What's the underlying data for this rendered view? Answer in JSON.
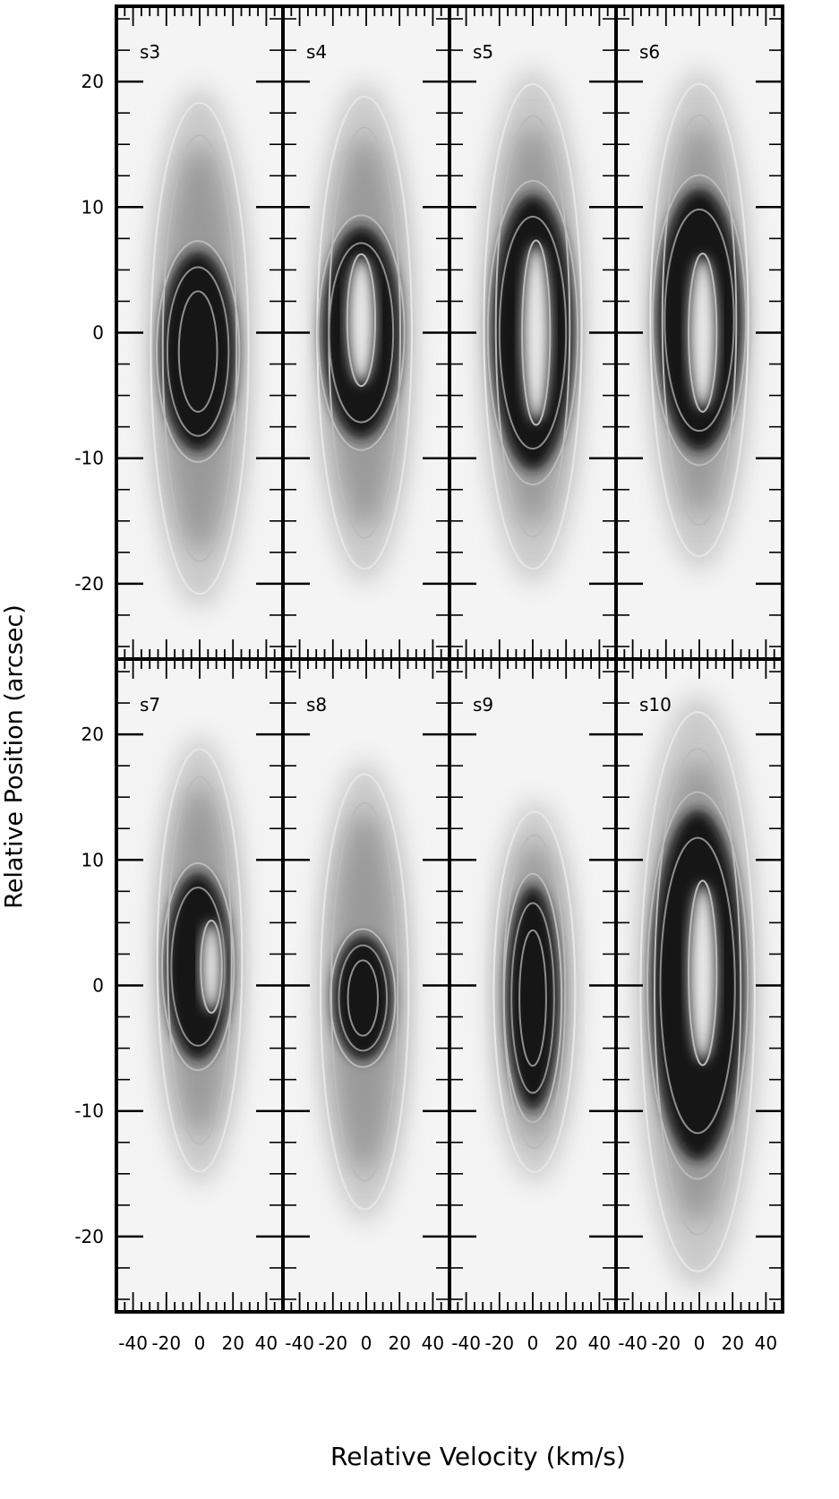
{
  "chart_data": {
    "type": "heatmap",
    "description_kind": "position-velocity diagrams (greyscale with contours)",
    "xlabel": "Relative Velocity (km/s)",
    "ylabel": "Relative Position (arcsec)",
    "xlim": [
      -50,
      50
    ],
    "ylim": [
      -26,
      26
    ],
    "x_ticks": [
      -40,
      -20,
      0,
      20,
      40
    ],
    "x_tick_labels": [
      "-40",
      "-20",
      "0",
      "20",
      "40"
    ],
    "y_ticks": [
      -20,
      -10,
      0,
      10,
      20
    ],
    "y_tick_labels": [
      "-20",
      "-10",
      "0",
      "10",
      "20"
    ],
    "layout": "2 rows x 4 columns",
    "colormap": "greyscale (white = low, black = high)",
    "contour_color": "#bbbbbb",
    "panels": [
      {
        "name": "s3",
        "emission_extent_y": [
          -21,
          18.5
        ],
        "emission_extent_x": [
          -30,
          30
        ],
        "dark_core": {
          "cx": -1,
          "cy": -1.5,
          "rx": 23,
          "ry": 8
        },
        "bright_hole": null
      },
      {
        "name": "s4",
        "emission_extent_y": [
          -19,
          19
        ],
        "emission_extent_x": [
          -30,
          28
        ],
        "dark_core": {
          "cx": -3,
          "cy": 0,
          "rx": 24,
          "ry": 8.5
        },
        "bright_hole": {
          "cx": -3,
          "cy": 1,
          "rx": 8,
          "ry": 5
        }
      },
      {
        "name": "s5",
        "emission_extent_y": [
          -19,
          20
        ],
        "emission_extent_x": [
          -30,
          30
        ],
        "dark_core": {
          "cx": 0,
          "cy": 0,
          "rx": 25,
          "ry": 11
        },
        "bright_hole": {
          "cx": 2,
          "cy": 0,
          "rx": 8,
          "ry": 7
        }
      },
      {
        "name": "s6",
        "emission_extent_y": [
          -18,
          20
        ],
        "emission_extent_x": [
          -30,
          30
        ],
        "dark_core": {
          "cx": 0,
          "cy": 1,
          "rx": 26,
          "ry": 10.5
        },
        "bright_hole": {
          "cx": 2,
          "cy": 0,
          "rx": 8,
          "ry": 6
        }
      },
      {
        "name": "s7",
        "emission_extent_y": [
          -15,
          19
        ],
        "emission_extent_x": [
          -26,
          26
        ],
        "dark_core": {
          "cx": -1,
          "cy": 1.5,
          "rx": 20,
          "ry": 7.5
        },
        "bright_hole": {
          "cx": 7,
          "cy": 1.5,
          "rx": 6,
          "ry": 3.5
        }
      },
      {
        "name": "s8",
        "emission_extent_y": [
          -18,
          17
        ],
        "emission_extent_x": [
          -28,
          26
        ],
        "dark_core": {
          "cx": -2,
          "cy": -1,
          "rx": 18,
          "ry": 5
        },
        "bright_hole": null
      },
      {
        "name": "s9",
        "emission_extent_y": [
          -15,
          14
        ],
        "emission_extent_x": [
          -24,
          26
        ],
        "dark_core": {
          "cx": 0,
          "cy": -1,
          "rx": 16,
          "ry": 9
        },
        "bright_hole": null
      },
      {
        "name": "s10",
        "emission_extent_y": [
          -23,
          22
        ],
        "emission_extent_x": [
          -36,
          34
        ],
        "dark_core": {
          "cx": -1,
          "cy": 0,
          "rx": 28,
          "ry": 14
        },
        "bright_hole": {
          "cx": 2,
          "cy": 1,
          "rx": 8,
          "ry": 7
        }
      }
    ]
  }
}
